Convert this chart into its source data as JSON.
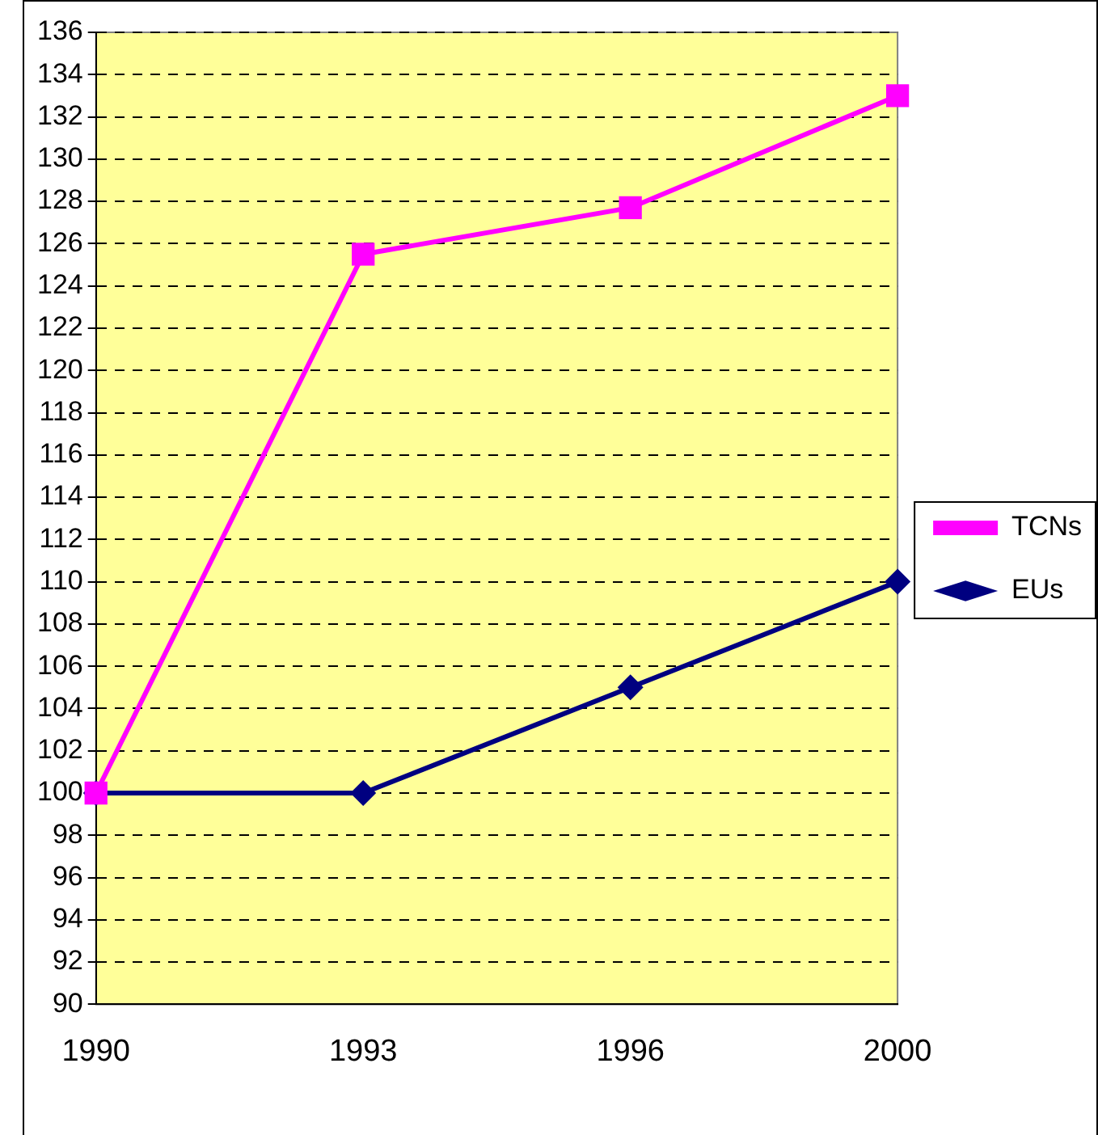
{
  "chart_data": {
    "type": "line",
    "categories": [
      "1990",
      "1993",
      "1996",
      "2000"
    ],
    "series": [
      {
        "name": "EUs",
        "color": "#000080",
        "marker": "diamond",
        "values": [
          100,
          100,
          105,
          110
        ]
      },
      {
        "name": "TCNs",
        "color": "#ff00ff",
        "marker": "square",
        "values": [
          100,
          125.5,
          127.7,
          133
        ]
      }
    ],
    "ylim": [
      90,
      136
    ],
    "yticks": [
      90,
      92,
      94,
      96,
      98,
      100,
      102,
      104,
      106,
      108,
      110,
      112,
      114,
      116,
      118,
      120,
      122,
      124,
      126,
      128,
      130,
      132,
      134,
      136
    ],
    "grid": "y",
    "legend": "right",
    "line_style": "solid"
  }
}
